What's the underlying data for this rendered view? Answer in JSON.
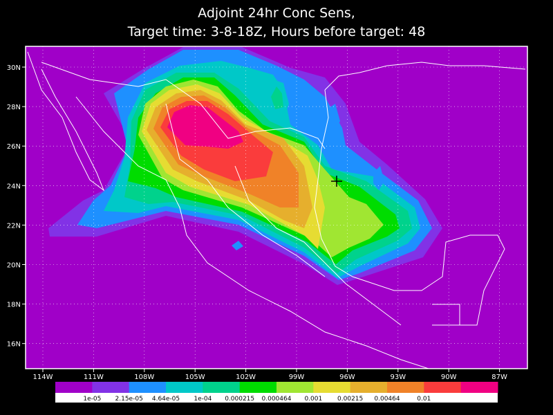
{
  "title": [
    "Adjoint 24hr Conc Sens,",
    "Target time: 3-8-18Z, Hours before target: 48"
  ],
  "longitude_labels": [
    "114W",
    "111W",
    "108W",
    "105W",
    "102W",
    "99W",
    "96W",
    "93W",
    "90W",
    "87W"
  ],
  "latitude_labels": [
    "30N",
    "28N",
    "26N",
    "24N",
    "22N",
    "20N",
    "18N",
    "16N"
  ],
  "colorbar": {
    "colors": [
      "#a000c8",
      "#8232e6",
      "#1e90ff",
      "#00c8c8",
      "#00d28c",
      "#00dc00",
      "#a0e632",
      "#e6dc32",
      "#e6af2d",
      "#f08228",
      "#fa3c3c",
      "#f00082"
    ],
    "labels": [
      "1e-05",
      "2.15e-05",
      "4.64e-05",
      "1e-04",
      "0.000215",
      "0.000464",
      "0.001",
      "0.00215",
      "0.00464",
      "0.01"
    ]
  }
}
